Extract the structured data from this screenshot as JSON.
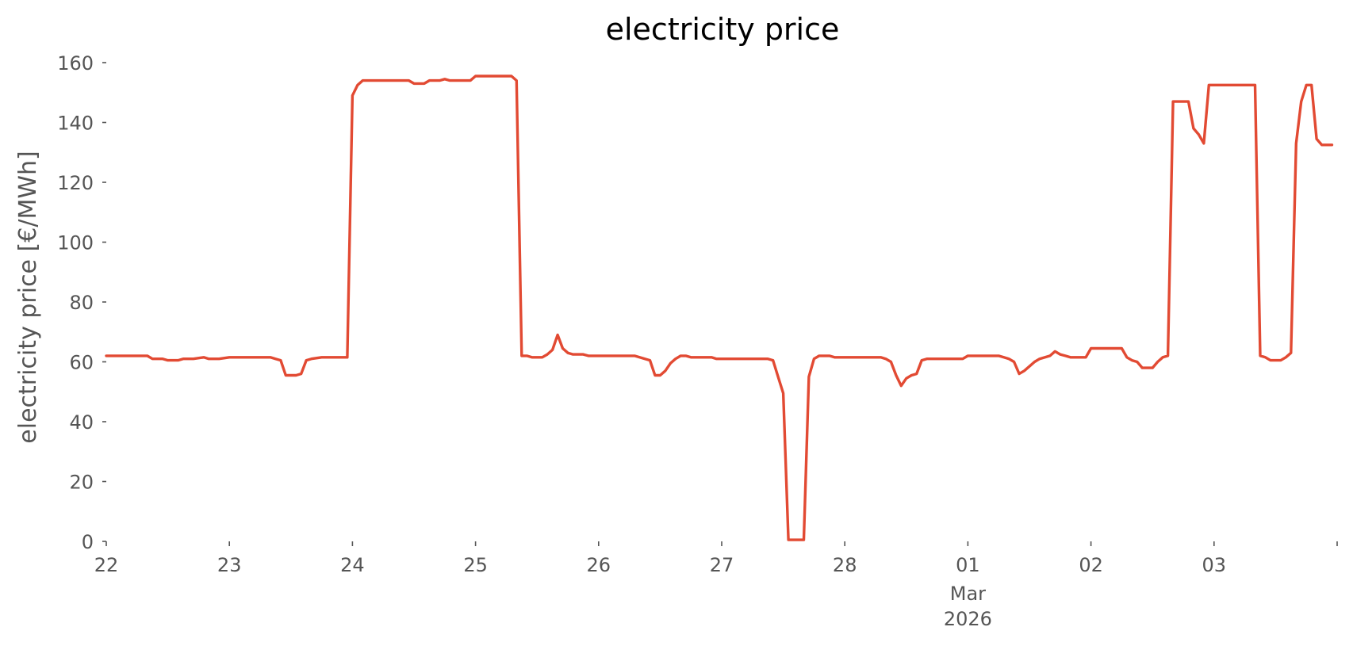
{
  "chart_data": {
    "type": "line",
    "title": "electricity price",
    "xlabel": "",
    "ylabel": "electricity price [€/MWh]",
    "ylim": [
      0,
      160
    ],
    "xlim": [
      "2026-02-22 00:00",
      "2026-03-03 23:00"
    ],
    "grid": false,
    "y_ticks": [
      0,
      20,
      40,
      60,
      80,
      100,
      120,
      140,
      160
    ],
    "x_ticks": [
      {
        "x": "2026-02-22",
        "label": "22"
      },
      {
        "x": "2026-02-23",
        "label": "23"
      },
      {
        "x": "2026-02-24",
        "label": "24"
      },
      {
        "x": "2026-02-25",
        "label": "25"
      },
      {
        "x": "2026-02-26",
        "label": "26"
      },
      {
        "x": "2026-02-27",
        "label": "27"
      },
      {
        "x": "2026-02-28",
        "label": "28"
      },
      {
        "x": "2026-03-01",
        "label": "01",
        "sublabel": "Mar",
        "sublabel2": "2026"
      },
      {
        "x": "2026-03-02",
        "label": "02"
      },
      {
        "x": "2026-03-03",
        "label": "03"
      },
      {
        "x": "2026-03-04",
        "label": ""
      }
    ],
    "series": [
      {
        "color": "#E24A33",
        "points": [
          [
            "2026-02-22 00:00",
            62
          ],
          [
            "2026-02-22 08:00",
            62
          ],
          [
            "2026-02-22 09:00",
            61
          ],
          [
            "2026-02-22 11:00",
            61
          ],
          [
            "2026-02-22 12:00",
            60.5
          ],
          [
            "2026-02-22 14:00",
            60.5
          ],
          [
            "2026-02-22 15:00",
            61
          ],
          [
            "2026-02-22 17:00",
            61
          ],
          [
            "2026-02-22 19:00",
            61.5
          ],
          [
            "2026-02-22 20:00",
            61
          ],
          [
            "2026-02-22 22:00",
            61
          ],
          [
            "2026-02-23 00:00",
            61.5
          ],
          [
            "2026-02-23 08:00",
            61.5
          ],
          [
            "2026-02-23 09:00",
            61
          ],
          [
            "2026-02-23 10:00",
            60.5
          ],
          [
            "2026-02-23 11:00",
            55.5
          ],
          [
            "2026-02-23 13:00",
            55.5
          ],
          [
            "2026-02-23 14:00",
            56
          ],
          [
            "2026-02-23 15:00",
            60.5
          ],
          [
            "2026-02-23 16:00",
            61
          ],
          [
            "2026-02-23 18:00",
            61.5
          ],
          [
            "2026-02-23 23:00",
            61.5
          ],
          [
            "2026-02-24 00:00",
            149
          ],
          [
            "2026-02-24 01:00",
            152.5
          ],
          [
            "2026-02-24 02:00",
            154
          ],
          [
            "2026-02-24 11:00",
            154
          ],
          [
            "2026-02-24 12:00",
            153
          ],
          [
            "2026-02-24 14:00",
            153
          ],
          [
            "2026-02-24 15:00",
            154
          ],
          [
            "2026-02-24 17:00",
            154
          ],
          [
            "2026-02-24 18:00",
            154.5
          ],
          [
            "2026-02-24 19:00",
            154
          ],
          [
            "2026-02-24 23:00",
            154
          ],
          [
            "2026-02-25 00:00",
            155.5
          ],
          [
            "2026-02-25 07:00",
            155.5
          ],
          [
            "2026-02-25 08:00",
            154
          ],
          [
            "2026-02-25 09:00",
            62
          ],
          [
            "2026-02-25 10:00",
            62
          ],
          [
            "2026-02-25 11:00",
            61.5
          ],
          [
            "2026-02-25 13:00",
            61.5
          ],
          [
            "2026-02-25 14:00",
            62.5
          ],
          [
            "2026-02-25 15:00",
            64
          ],
          [
            "2026-02-25 16:00",
            69
          ],
          [
            "2026-02-25 17:00",
            64.5
          ],
          [
            "2026-02-25 18:00",
            63
          ],
          [
            "2026-02-25 19:00",
            62.5
          ],
          [
            "2026-02-25 21:00",
            62.5
          ],
          [
            "2026-02-25 22:00",
            62
          ],
          [
            "2026-02-26 07:00",
            62
          ],
          [
            "2026-02-26 08:00",
            61.5
          ],
          [
            "2026-02-26 10:00",
            60.5
          ],
          [
            "2026-02-26 11:00",
            55.5
          ],
          [
            "2026-02-26 12:00",
            55.5
          ],
          [
            "2026-02-26 13:00",
            57
          ],
          [
            "2026-02-26 14:00",
            59.5
          ],
          [
            "2026-02-26 15:00",
            61
          ],
          [
            "2026-02-26 16:00",
            62
          ],
          [
            "2026-02-26 17:00",
            62
          ],
          [
            "2026-02-26 18:00",
            61.5
          ],
          [
            "2026-02-26 22:00",
            61.5
          ],
          [
            "2026-02-26 23:00",
            61
          ],
          [
            "2026-02-27 09:00",
            61
          ],
          [
            "2026-02-27 10:00",
            60.5
          ],
          [
            "2026-02-27 11:00",
            55
          ],
          [
            "2026-02-27 12:00",
            49.5
          ],
          [
            "2026-02-27 13:00",
            0.5
          ],
          [
            "2026-02-27 16:00",
            0.5
          ],
          [
            "2026-02-27 17:00",
            55
          ],
          [
            "2026-02-27 18:00",
            61
          ],
          [
            "2026-02-27 19:00",
            62
          ],
          [
            "2026-02-27 21:00",
            62
          ],
          [
            "2026-02-27 22:00",
            61.5
          ],
          [
            "2026-02-28 07:00",
            61.5
          ],
          [
            "2026-02-28 08:00",
            61
          ],
          [
            "2026-02-28 09:00",
            60
          ],
          [
            "2026-02-28 10:00",
            55.5
          ],
          [
            "2026-02-28 11:00",
            52
          ],
          [
            "2026-02-28 12:00",
            54.5
          ],
          [
            "2026-02-28 13:00",
            55.5
          ],
          [
            "2026-02-28 14:00",
            56
          ],
          [
            "2026-02-28 15:00",
            60.5
          ],
          [
            "2026-02-28 16:00",
            61
          ],
          [
            "2026-02-28 23:00",
            61
          ],
          [
            "2026-03-01 00:00",
            62
          ],
          [
            "2026-03-01 06:00",
            62
          ],
          [
            "2026-03-01 07:00",
            61.5
          ],
          [
            "2026-03-01 08:00",
            61
          ],
          [
            "2026-03-01 09:00",
            60
          ],
          [
            "2026-03-01 10:00",
            56
          ],
          [
            "2026-03-01 11:00",
            57
          ],
          [
            "2026-03-01 12:00",
            58.5
          ],
          [
            "2026-03-01 13:00",
            60
          ],
          [
            "2026-03-01 14:00",
            61
          ],
          [
            "2026-03-01 16:00",
            62
          ],
          [
            "2026-03-01 17:00",
            63.5
          ],
          [
            "2026-03-01 18:00",
            62.5
          ],
          [
            "2026-03-01 19:00",
            62
          ],
          [
            "2026-03-01 20:00",
            61.5
          ],
          [
            "2026-03-01 23:00",
            61.5
          ],
          [
            "2026-03-02 00:00",
            64.5
          ],
          [
            "2026-03-02 06:00",
            64.5
          ],
          [
            "2026-03-02 07:00",
            61.5
          ],
          [
            "2026-03-02 08:00",
            60.5
          ],
          [
            "2026-03-02 09:00",
            60
          ],
          [
            "2026-03-02 10:00",
            58
          ],
          [
            "2026-03-02 12:00",
            58
          ],
          [
            "2026-03-02 13:00",
            60
          ],
          [
            "2026-03-02 14:00",
            61.5
          ],
          [
            "2026-03-02 15:00",
            62
          ],
          [
            "2026-03-02 16:00",
            147
          ],
          [
            "2026-03-02 19:00",
            147
          ],
          [
            "2026-03-02 20:00",
            138
          ],
          [
            "2026-03-02 21:00",
            136
          ],
          [
            "2026-03-02 22:00",
            133
          ],
          [
            "2026-03-02 23:00",
            152.5
          ],
          [
            "2026-03-03 08:00",
            152.5
          ],
          [
            "2026-03-03 09:00",
            62
          ],
          [
            "2026-03-03 10:00",
            61.5
          ],
          [
            "2026-03-03 11:00",
            60.5
          ],
          [
            "2026-03-03 13:00",
            60.5
          ],
          [
            "2026-03-03 14:00",
            61.5
          ],
          [
            "2026-03-03 15:00",
            63
          ],
          [
            "2026-03-03 16:00",
            133
          ],
          [
            "2026-03-03 17:00",
            147
          ],
          [
            "2026-03-03 18:00",
            152.5
          ],
          [
            "2026-03-03 19:00",
            152.5
          ],
          [
            "2026-03-03 20:00",
            134.5
          ],
          [
            "2026-03-03 21:00",
            132.5
          ],
          [
            "2026-03-03 23:00",
            132.5
          ]
        ]
      }
    ]
  }
}
